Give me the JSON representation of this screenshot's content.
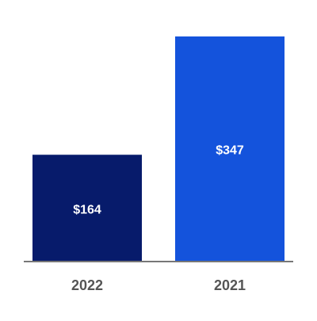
{
  "chart_data": {
    "type": "bar",
    "categories": [
      "2022",
      "2021"
    ],
    "values": [
      164,
      347
    ],
    "value_labels": [
      "$164",
      "$347"
    ],
    "colors": [
      "#071b6b",
      "#1453dc"
    ]
  }
}
